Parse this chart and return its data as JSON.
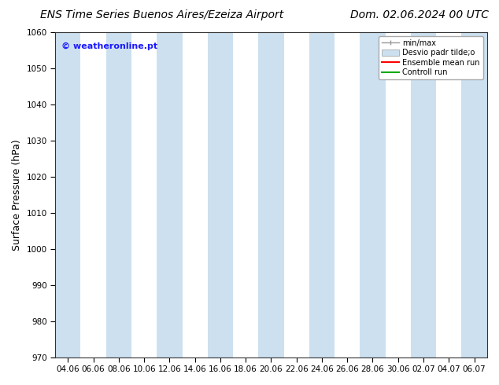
{
  "title_left": "ENS Time Series Buenos Aires/Ezeiza Airport",
  "title_right": "Dom. 02.06.2024 00 UTC",
  "ylabel": "Surface Pressure (hPa)",
  "ylim": [
    970,
    1060
  ],
  "yticks": [
    970,
    980,
    990,
    1000,
    1010,
    1020,
    1030,
    1040,
    1050,
    1060
  ],
  "x_labels": [
    "04.06",
    "06.06",
    "08.06",
    "10.06",
    "12.06",
    "14.06",
    "16.06",
    "18.06",
    "20.06",
    "22.06",
    "24.06",
    "26.06",
    "28.06",
    "30.06",
    "02.07",
    "04.07",
    "06.07"
  ],
  "n_ticks": 17,
  "watermark": "© weatheronline.pt",
  "watermark_color": "#1a1aff",
  "background_color": "#ffffff",
  "plot_bg_color": "#ffffff",
  "shaded_color": "#cce0f0",
  "legend_labels": [
    "min/max",
    "Desvio padr tilde;o",
    "Ensemble mean run",
    "Controll run"
  ],
  "legend_colors": [
    "#999999",
    "#cce0f0",
    "#ff0000",
    "#00aa00"
  ],
  "title_fontsize": 10,
  "tick_fontsize": 7.5,
  "ylabel_fontsize": 9,
  "watermark_fontsize": 8,
  "shaded_bar_positions": [
    0,
    2,
    4,
    6,
    8,
    10,
    12,
    14,
    16
  ]
}
